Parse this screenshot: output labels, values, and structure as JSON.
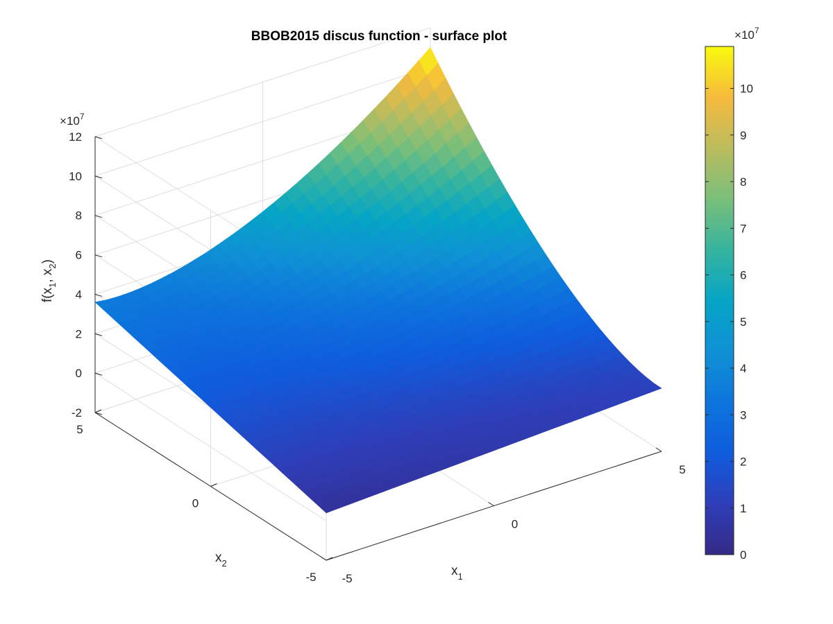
{
  "chart_data": {
    "type": "surface",
    "title": "BBOB2015 discus function - surface plot",
    "xlabel": {
      "base": "x",
      "sub": "1"
    },
    "ylabel": {
      "base": "x",
      "sub": "2"
    },
    "zlabel": {
      "pre": "f(x",
      "sub1": "1",
      "mid": ", x",
      "sub2": "2",
      "post": ")"
    },
    "x_ticks": [
      "-5",
      "0",
      "5"
    ],
    "y_ticks": [
      "-5",
      "0",
      "5"
    ],
    "z_ticks": [
      "-2",
      "0",
      "2",
      "4",
      "6",
      "8",
      "10",
      "12"
    ],
    "z_exponent": {
      "times": "×",
      "base": "10",
      "power": "7"
    },
    "xlim": [
      -5,
      5
    ],
    "ylim": [
      -5,
      5
    ],
    "zlim": [
      -2,
      12
    ],
    "z_scale_multiplier": 10000000,
    "grid": true,
    "colormap": "parula",
    "surface_corners": {
      "x_min_y_min": 0.4,
      "x_min_y_max": 3.6,
      "x_max_y_min": 1.2,
      "x_max_y_max": 11.0
    },
    "surface_peak": 11.0,
    "colorbar": {
      "ticks": [
        "0",
        "1",
        "2",
        "3",
        "4",
        "5",
        "6",
        "7",
        "8",
        "9",
        "10"
      ],
      "range": [
        0,
        10.9
      ],
      "exponent": {
        "times": "×",
        "base": "10",
        "power": "7"
      }
    }
  }
}
